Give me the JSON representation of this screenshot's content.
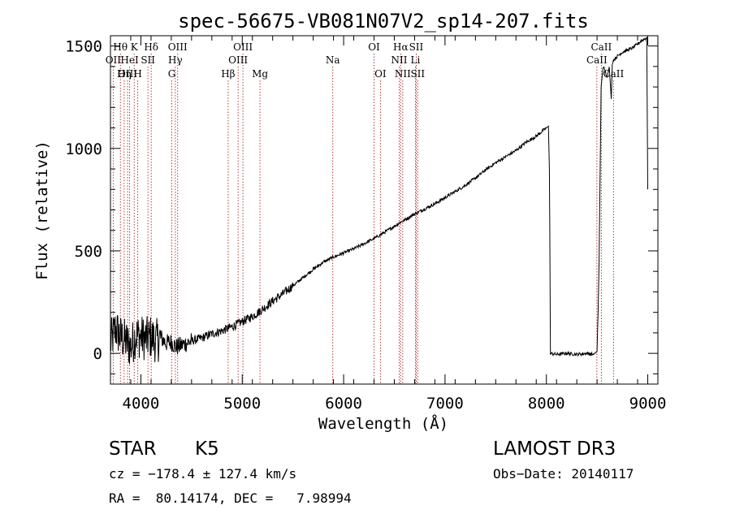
{
  "chart_data": {
    "type": "line",
    "title": "spec-56675-VB081N07V2_sp14-207.fits",
    "xlabel": "Wavelength (Å)",
    "ylabel": "Flux (relative)",
    "xlim": [
      3700,
      9100
    ],
    "ylim": [
      -150,
      1550
    ],
    "xticks": [
      4000,
      5000,
      6000,
      7000,
      8000,
      9000
    ],
    "yticks": [
      0,
      500,
      1000,
      1500
    ],
    "grid": false,
    "series": [
      {
        "name": "flux",
        "x": [
          3700,
          3750,
          3800,
          3850,
          3900,
          3950,
          4000,
          4050,
          4100,
          4150,
          4200,
          4250,
          4300,
          4350,
          4400,
          4500,
          4600,
          4700,
          4800,
          4900,
          5000,
          5100,
          5200,
          5300,
          5400,
          5500,
          5600,
          5700,
          5800,
          5900,
          5950,
          6000,
          6100,
          6200,
          6300,
          6400,
          6500,
          6560,
          6600,
          6700,
          6800,
          6900,
          7000,
          7100,
          7200,
          7300,
          7400,
          7500,
          7600,
          7700,
          7800,
          7900,
          7950,
          8000,
          8020,
          8030,
          8040,
          8100,
          8200,
          8300,
          8400,
          8460,
          8480,
          8500,
          8510,
          8520,
          8540,
          8560,
          8600,
          8620,
          8640,
          8650,
          8660,
          8700,
          8750,
          8800,
          8850,
          8900,
          8950,
          8990,
          9000
        ],
        "values": [
          50,
          120,
          80,
          60,
          30,
          90,
          80,
          70,
          80,
          60,
          75,
          50,
          55,
          30,
          40,
          60,
          75,
          95,
          110,
          130,
          155,
          180,
          215,
          255,
          290,
          330,
          370,
          410,
          445,
          470,
          480,
          490,
          510,
          535,
          560,
          590,
          620,
          640,
          650,
          680,
          705,
          730,
          760,
          790,
          820,
          855,
          895,
          930,
          960,
          990,
          1030,
          1060,
          1080,
          1100,
          1110,
          900,
          0,
          -5,
          0,
          -5,
          0,
          -5,
          0,
          10,
          200,
          450,
          1300,
          1400,
          1350,
          1400,
          1240,
          1410,
          1430,
          1450,
          1470,
          1480,
          1490,
          1510,
          1530,
          1540,
          800
        ]
      }
    ],
    "spectral_lines": [
      {
        "label": "Hθ",
        "wavelength": 3798,
        "row": 1
      },
      {
        "label": "OII",
        "wavelength": 3727,
        "row": 2
      },
      {
        "label": "HeI",
        "wavelength": 3889,
        "row": 2
      },
      {
        "label": "OIII",
        "wavelength": 3869,
        "row": 3
      },
      {
        "label": "Hη",
        "wavelength": 3835,
        "row": 3
      },
      {
        "label": "K",
        "wavelength": 3934,
        "row": 1
      },
      {
        "label": "SII",
        "wavelength": 4070,
        "row": 2
      },
      {
        "label": "H",
        "wavelength": 3969,
        "row": 3
      },
      {
        "label": "Hδ",
        "wavelength": 4102,
        "row": 1
      },
      {
        "label": "OIII",
        "wavelength": 4363,
        "row": 1
      },
      {
        "label": "Hγ",
        "wavelength": 4340,
        "row": 2
      },
      {
        "label": "G",
        "wavelength": 4305,
        "row": 3
      },
      {
        "label": "OIII",
        "wavelength": 5007,
        "row": 1
      },
      {
        "label": "OIII",
        "wavelength": 4959,
        "row": 2
      },
      {
        "label": "Hβ",
        "wavelength": 4861,
        "row": 3
      },
      {
        "label": "Mg",
        "wavelength": 5175,
        "row": 3
      },
      {
        "label": "Na",
        "wavelength": 5893,
        "row": 2
      },
      {
        "label": "OI",
        "wavelength": 6300,
        "row": 1
      },
      {
        "label": "OI",
        "wavelength": 6363,
        "row": 3
      },
      {
        "label": "Hα",
        "wavelength": 6563,
        "row": 1
      },
      {
        "label": "NII",
        "wavelength": 6548,
        "row": 2
      },
      {
        "label": "NII",
        "wavelength": 6583,
        "row": 3
      },
      {
        "label": "SII",
        "wavelength": 6716,
        "row": 1
      },
      {
        "label": "Li",
        "wavelength": 6708,
        "row": 2
      },
      {
        "label": "SII",
        "wavelength": 6731,
        "row": 3
      },
      {
        "label": "CaII",
        "wavelength": 8542,
        "row": 1
      },
      {
        "label": "CaII",
        "wavelength": 8498,
        "row": 2
      },
      {
        "label": "CaII",
        "wavelength": 8662,
        "row": 3
      }
    ]
  },
  "info": {
    "class_label": "STAR",
    "subclass": "K5",
    "survey": "LAMOST DR3",
    "cz": "cz = −178.4 ± 127.4 km/s",
    "obs_date": "Obs−Date: 20140117",
    "coords": "RA =  80.14174, DEC =   7.98994"
  },
  "colors": {
    "line_marker": "#b22222",
    "spectrum": "#000000"
  }
}
